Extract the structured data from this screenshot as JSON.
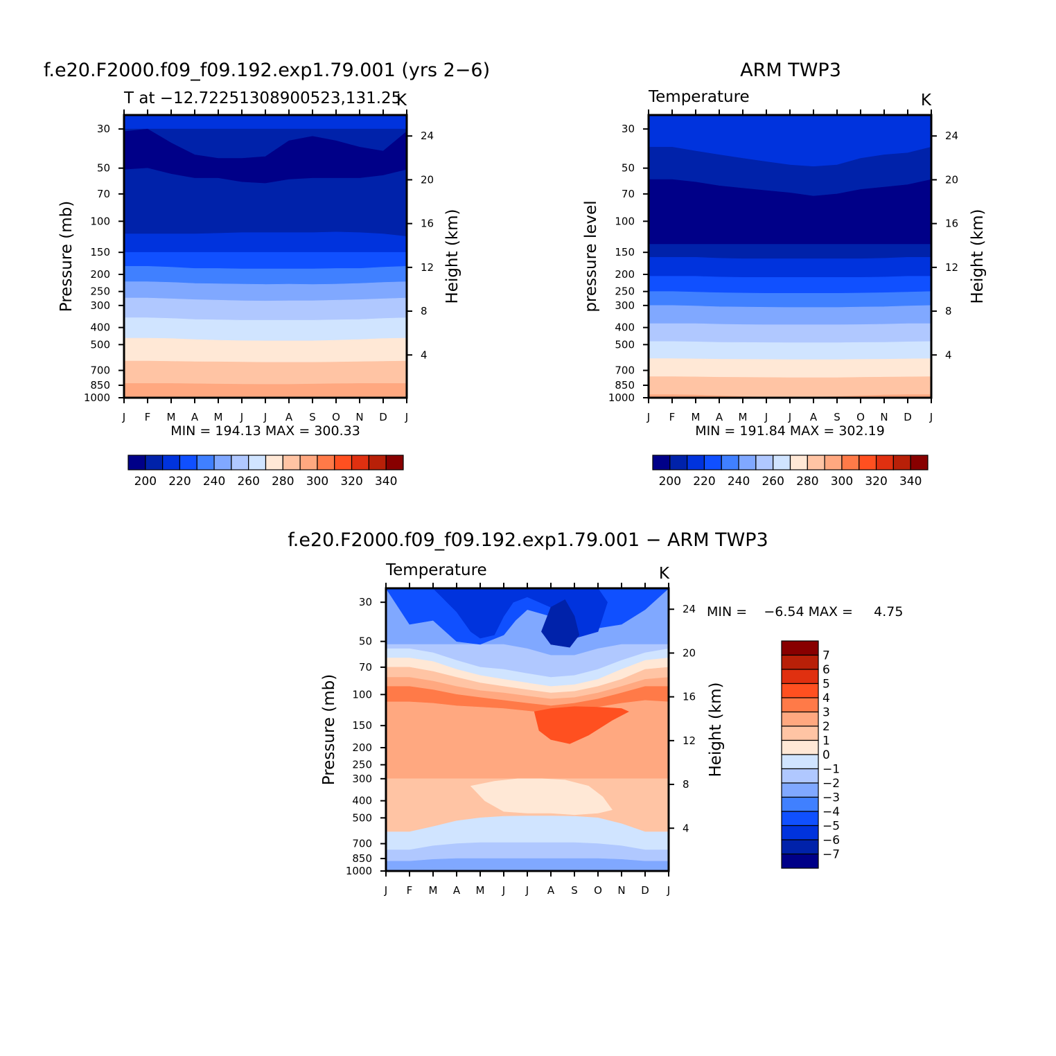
{
  "chart_data": [
    {
      "type": "contour",
      "title": "f.e20.F2000.f09_f09.192.exp1.79.001 (yrs 2−6)",
      "subtitle_left": "T at −12.72251308900523,131.25",
      "subtitle_right": "K",
      "ylabel": "Pressure (mb)",
      "ylabel_right": "Height (km)",
      "x_ticks": [
        "J",
        "F",
        "M",
        "A",
        "M",
        "J",
        "J",
        "A",
        "S",
        "O",
        "N",
        "D",
        "J"
      ],
      "y_ticks": [
        30,
        50,
        70,
        100,
        150,
        200,
        250,
        300,
        400,
        500,
        700,
        850,
        1000
      ],
      "y_right_ticks": [
        24,
        20,
        16,
        12,
        8,
        4
      ],
      "ylim": [
        1000,
        25
      ],
      "stats": "MIN = 194.13 MAX = 300.33",
      "min": 194.13,
      "max": 300.33,
      "colorbar": {
        "orientation": "horizontal",
        "levels": [
          195,
          200,
          205,
          210,
          215,
          220,
          225,
          230,
          235,
          240,
          245,
          250,
          255,
          260,
          265,
          270,
          275,
          280,
          285,
          290,
          295,
          300,
          305,
          310,
          315,
          320,
          325,
          330,
          335,
          340,
          345
        ],
        "labels": [
          "200",
          "220",
          "240",
          "260",
          "280",
          "300",
          "320",
          "340"
        ]
      },
      "boundaries": [
        [
          30,
          30,
          30,
          30,
          30,
          30,
          30,
          30,
          30,
          30,
          30,
          30,
          30
        ],
        [
          31,
          30,
          36,
          42,
          44,
          44,
          43,
          35,
          33,
          35,
          38,
          40,
          31
        ],
        [
          51,
          50,
          54,
          57,
          57,
          60,
          61,
          58,
          57,
          57,
          57,
          55,
          51
        ],
        [
          118,
          118,
          118,
          118,
          117,
          116,
          116,
          116,
          116,
          115,
          116,
          118,
          122
        ],
        [
          150,
          150,
          150,
          150,
          150,
          150,
          150,
          150,
          150,
          150,
          150,
          150,
          150
        ],
        [
          180,
          180,
          182,
          185,
          185,
          186,
          186,
          186,
          186,
          185,
          185,
          182,
          180
        ],
        [
          220,
          220,
          222,
          225,
          226,
          227,
          228,
          227,
          228,
          227,
          225,
          222,
          220
        ],
        [
          272,
          272,
          275,
          278,
          280,
          282,
          283,
          282,
          282,
          280,
          278,
          275,
          272
        ],
        [
          352,
          352,
          355,
          360,
          362,
          364,
          364,
          364,
          364,
          362,
          360,
          355,
          352
        ],
        [
          460,
          460,
          462,
          468,
          472,
          475,
          476,
          476,
          476,
          472,
          468,
          462,
          460
        ],
        [
          620,
          620,
          622,
          625,
          626,
          628,
          630,
          630,
          630,
          628,
          625,
          622,
          620
        ],
        [
          830,
          830,
          830,
          833,
          836,
          838,
          840,
          840,
          836,
          832,
          830,
          830,
          830
        ],
        [
          980,
          980,
          980,
          980,
          985,
          995,
          1000,
          1000,
          990,
          980,
          980,
          980,
          980
        ]
      ],
      "fills": [
        "#0033dd",
        "#0022aa",
        "#000088",
        "#0022aa",
        "#0033dd",
        "#1050ff",
        "#4080ff",
        "#80a8ff",
        "#b0c8ff",
        "#d0e4ff",
        "#ffe8d6",
        "#ffc4a4",
        "#ffa880"
      ]
    },
    {
      "type": "contour",
      "title": "ARM TWP3",
      "subtitle_left": "Temperature",
      "subtitle_right": "K",
      "ylabel": "pressure level",
      "ylabel_right": "Height (km)",
      "x_ticks": [
        "J",
        "F",
        "M",
        "A",
        "M",
        "J",
        "J",
        "A",
        "S",
        "O",
        "N",
        "D",
        "J"
      ],
      "y_ticks": [
        30,
        50,
        70,
        100,
        150,
        200,
        250,
        300,
        400,
        500,
        700,
        850,
        1000
      ],
      "y_right_ticks": [
        24,
        20,
        16,
        12,
        8,
        4
      ],
      "ylim": [
        1000,
        25
      ],
      "stats": "MIN = 191.84 MAX = 302.19",
      "min": 191.84,
      "max": 302.19,
      "colorbar": {
        "orientation": "horizontal",
        "levels": [
          195,
          200,
          205,
          210,
          215,
          220,
          225,
          230,
          235,
          240,
          245,
          250,
          255,
          260,
          265,
          270,
          275,
          280,
          285,
          290,
          295,
          300,
          305,
          310,
          315,
          320,
          325,
          330,
          335,
          340,
          345
        ],
        "labels": [
          "200",
          "220",
          "240",
          "260",
          "280",
          "300",
          "320",
          "340"
        ]
      },
      "boundaries": [
        [
          38,
          38,
          40,
          42,
          44,
          46,
          48,
          49,
          48,
          44,
          42,
          41,
          38
        ],
        [
          58,
          58,
          60,
          63,
          65,
          67,
          69,
          72,
          70,
          66,
          64,
          62,
          58
        ],
        [
          135,
          135,
          135,
          135,
          135,
          135,
          135,
          135,
          135,
          135,
          135,
          135,
          135
        ],
        [
          160,
          160,
          160,
          162,
          163,
          163,
          163,
          163,
          163,
          163,
          162,
          160,
          160
        ],
        [
          205,
          205,
          205,
          207,
          208,
          208,
          208,
          208,
          208,
          208,
          207,
          205,
          205
        ],
        [
          250,
          250,
          252,
          254,
          255,
          256,
          256,
          256,
          256,
          255,
          254,
          252,
          250
        ],
        [
          300,
          300,
          302,
          305,
          306,
          307,
          308,
          308,
          308,
          306,
          305,
          302,
          300
        ],
        [
          380,
          380,
          380,
          383,
          385,
          386,
          386,
          386,
          386,
          385,
          383,
          380,
          380
        ],
        [
          480,
          480,
          482,
          485,
          486,
          487,
          488,
          488,
          488,
          486,
          485,
          482,
          480
        ],
        [
          600,
          600,
          602,
          605,
          606,
          607,
          608,
          608,
          608,
          606,
          605,
          602,
          600
        ],
        [
          760,
          760,
          762,
          765,
          766,
          768,
          770,
          770,
          770,
          766,
          764,
          762,
          760
        ],
        [
          960,
          960,
          965,
          975,
          985,
          990,
          990,
          990,
          985,
          975,
          965,
          960,
          960
        ]
      ],
      "fills": [
        "#0033dd",
        "#0022aa",
        "#000088",
        "#0022aa",
        "#0033dd",
        "#1050ff",
        "#4080ff",
        "#80a8ff",
        "#b0c8ff",
        "#d0e4ff",
        "#ffe8d6",
        "#ffc4a4",
        "#ffa880"
      ]
    },
    {
      "type": "contour",
      "title": "f.e20.F2000.f09_f09.192.exp1.79.001 − ARM TWP3",
      "subtitle_left": "Temperature",
      "subtitle_right": "K",
      "ylabel": "Pressure (mb)",
      "ylabel_right": "Height (km)",
      "x_ticks": [
        "J",
        "F",
        "M",
        "A",
        "M",
        "J",
        "J",
        "A",
        "S",
        "O",
        "N",
        "D",
        "J"
      ],
      "y_ticks": [
        30,
        50,
        70,
        100,
        150,
        200,
        250,
        300,
        400,
        500,
        700,
        850,
        1000
      ],
      "y_right_ticks": [
        24,
        20,
        16,
        12,
        8,
        4
      ],
      "ylim": [
        1000,
        25
      ],
      "stats": "MIN =    −6.54 MAX =     4.75",
      "min": -6.54,
      "max": 4.75,
      "colorbar": {
        "orientation": "vertical",
        "levels": [
          -7,
          -6,
          -5,
          -4,
          -3,
          -2,
          -1,
          0,
          1,
          2,
          3,
          4,
          5,
          6,
          7
        ],
        "labels": [
          "7",
          "6",
          "5",
          "4",
          "3",
          "2",
          "1",
          "0",
          "−1",
          "−2",
          "−3",
          "−4",
          "−5",
          "−6",
          "−7"
        ]
      },
      "boundaries": [
        [
          80,
          40,
          38,
          36,
          34,
          33,
          34,
          40,
          40,
          34,
          30,
          30,
          80
        ],
        [
          25,
          25,
          25,
          25,
          25,
          25,
          25,
          25,
          25,
          25,
          25,
          25,
          25
        ],
        [
          52,
          52,
          52,
          52,
          52,
          52,
          55,
          60,
          60,
          55,
          52,
          52,
          52
        ],
        [
          55,
          55,
          58,
          64,
          70,
          72,
          76,
          80,
          78,
          72,
          64,
          58,
          55
        ],
        [
          62,
          62,
          65,
          72,
          78,
          82,
          86,
          90,
          88,
          82,
          72,
          64,
          62
        ],
        [
          70,
          70,
          74,
          80,
          86,
          90,
          94,
          98,
          96,
          90,
          82,
          72,
          70
        ],
        [
          80,
          80,
          84,
          90,
          95,
          98,
          102,
          106,
          104,
          98,
          90,
          82,
          80
        ],
        [
          90,
          90,
          94,
          100,
          104,
          108,
          112,
          116,
          112,
          106,
          98,
          90,
          90
        ],
        [
          110,
          110,
          112,
          116,
          118,
          120,
          124,
          128,
          124,
          118,
          112,
          108,
          110
        ],
        [
          300,
          300,
          300,
          300,
          300,
          300,
          300,
          300,
          300,
          300,
          300,
          300,
          300
        ],
        [
          600,
          600,
          560,
          520,
          500,
          490,
          488,
          488,
          490,
          500,
          540,
          600,
          600
        ],
        [
          760,
          760,
          720,
          700,
          690,
          690,
          690,
          690,
          690,
          700,
          720,
          760,
          760
        ],
        [
          880,
          880,
          860,
          850,
          850,
          850,
          850,
          850,
          850,
          850,
          860,
          880,
          880
        ],
        [
          980,
          980,
          960,
          950,
          950,
          950,
          950,
          950,
          950,
          960,
          970,
          980,
          980
        ]
      ],
      "fills": [
        "#4080ff",
        "#4080ff",
        "#80a8ff",
        "#b0c8ff",
        "#d0e4ff",
        "#ffe8d6",
        "#ffc4a4",
        "#ffa880",
        "#ff7a48",
        "#ffa880",
        "#ffc4a4",
        "#d0e4ff",
        "#b0c8ff",
        "#80a8ff"
      ],
      "overlays": [
        {
          "color": "#1050ff",
          "x": [
            0,
            1,
            2,
            3,
            4,
            5,
            5.5,
            6,
            7,
            8,
            8.5,
            9,
            10,
            11,
            12,
            12,
            0
          ],
          "p": [
            25,
            40,
            38,
            50,
            52,
            46,
            38,
            33,
            36,
            40,
            36,
            42,
            40,
            33,
            25,
            25,
            25
          ]
        },
        {
          "color": "#0033dd",
          "x": [
            1,
            2,
            3,
            3.6,
            4,
            4.6,
            5,
            5.4,
            6,
            7,
            7.6,
            8,
            9,
            9.4,
            9,
            3,
            1
          ],
          "p": [
            25,
            25,
            34,
            44,
            48,
            46,
            36,
            30,
            28,
            32,
            40,
            48,
            44,
            30,
            25,
            25,
            25
          ]
        },
        {
          "color": "#0022aa",
          "x": [
            6.6,
            7,
            7.6,
            8,
            8.2,
            7.8,
            7,
            6.6
          ],
          "p": [
            44,
            32,
            29,
            36,
            46,
            54,
            52,
            44
          ]
        },
        {
          "color": "#ff5020",
          "x": [
            6.3,
            7,
            8,
            9,
            10,
            10.3,
            9.6,
            8.6,
            7.8,
            7,
            6.5,
            6.3
          ],
          "p": [
            125,
            120,
            117,
            118,
            120,
            125,
            140,
            170,
            190,
            180,
            160,
            125
          ]
        },
        {
          "color": "#ffe8d6",
          "x": [
            3.6,
            4.6,
            5.6,
            6.6,
            7.6,
            8.6,
            9.2,
            9.6,
            9,
            8,
            7,
            6,
            5,
            4.2,
            3.6
          ],
          "p": [
            330,
            310,
            300,
            300,
            305,
            330,
            380,
            450,
            470,
            480,
            470,
            470,
            460,
            400,
            330
          ]
        }
      ]
    }
  ]
}
